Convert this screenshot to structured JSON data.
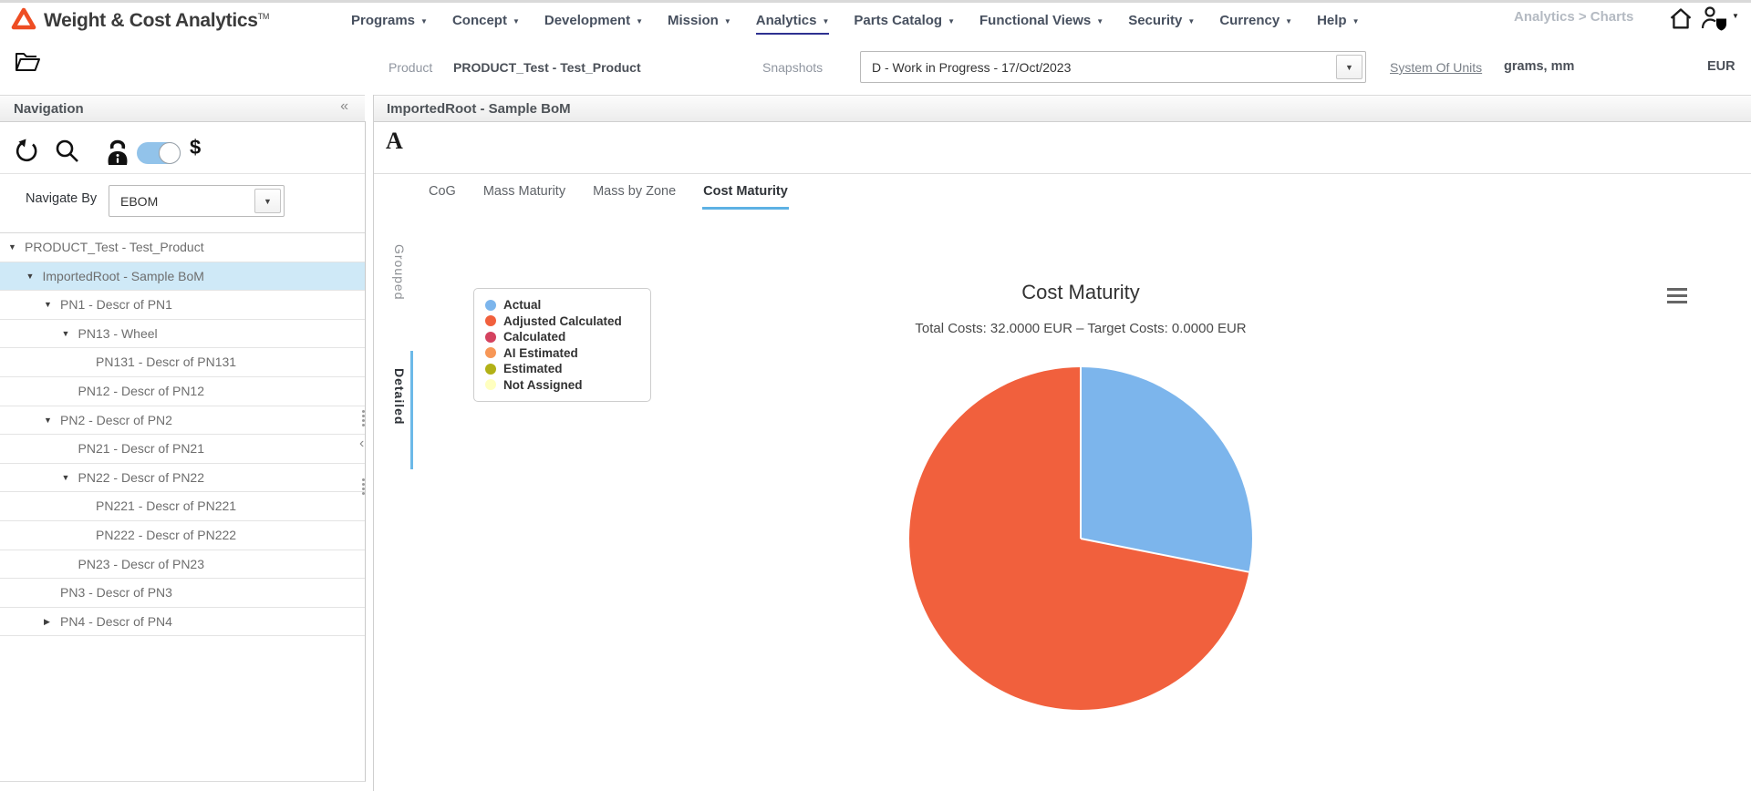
{
  "app": {
    "logo_text": "Weight & Cost Analytics",
    "logo_tm": "TM"
  },
  "top_nav": {
    "items": [
      {
        "label": "Programs"
      },
      {
        "label": "Concept"
      },
      {
        "label": "Development"
      },
      {
        "label": "Mission"
      },
      {
        "label": "Analytics"
      },
      {
        "label": "Parts Catalog"
      },
      {
        "label": "Functional Views"
      },
      {
        "label": "Security"
      },
      {
        "label": "Currency"
      },
      {
        "label": "Help"
      }
    ],
    "active_item": "Analytics",
    "breadcrumb": "Analytics > Charts"
  },
  "context_bar": {
    "product_label": "Product",
    "product_value": "PRODUCT_Test - Test_Product",
    "snapshots_label": "Snapshots",
    "snapshot_value": "D - Work in Progress - 17/Oct/2023",
    "system_of_units_label": "System Of Units",
    "units_value": "grams, mm",
    "currency": "EUR"
  },
  "sidebar": {
    "title": "Navigation",
    "collapse_icon": "«",
    "navigate_by_label": "Navigate By",
    "navigate_by_value": "EBOM",
    "cost_icon_label": "$",
    "toggle_state": "right",
    "tree": [
      {
        "label": "PRODUCT_Test - Test_Product",
        "level": 0,
        "state": "expanded",
        "selected": false
      },
      {
        "label": "ImportedRoot - Sample BoM",
        "level": 1,
        "state": "expanded",
        "selected": true
      },
      {
        "label": "PN1 - Descr of PN1",
        "level": 2,
        "state": "expanded",
        "selected": false
      },
      {
        "label": "PN13 - Wheel",
        "level": 3,
        "state": "expanded",
        "selected": false
      },
      {
        "label": "PN131 - Descr of PN131",
        "level": 4,
        "state": "leaf",
        "selected": false
      },
      {
        "label": "PN12 - Descr of PN12",
        "level": 3,
        "state": "leaf",
        "selected": false
      },
      {
        "label": "PN2 - Descr of PN2",
        "level": 2,
        "state": "expanded",
        "selected": false
      },
      {
        "label": "PN21 - Descr of PN21",
        "level": 3,
        "state": "leaf",
        "selected": false
      },
      {
        "label": "PN22 - Descr of PN22",
        "level": 3,
        "state": "expanded",
        "selected": false
      },
      {
        "label": "PN221 - Descr of PN221",
        "level": 4,
        "state": "leaf",
        "selected": false
      },
      {
        "label": "PN222 - Descr of PN222",
        "level": 4,
        "state": "leaf",
        "selected": false
      },
      {
        "label": "PN23 - Descr of PN23",
        "level": 3,
        "state": "leaf",
        "selected": false
      },
      {
        "label": "PN3 - Descr of PN3",
        "level": 2,
        "state": "leaf",
        "selected": false
      },
      {
        "label": "PN4 - Descr of PN4",
        "level": 2,
        "state": "collapsed",
        "selected": false
      }
    ]
  },
  "main": {
    "header": "ImportedRoot - Sample BoM",
    "font_button_label": "A",
    "tabs": [
      "CoG",
      "Mass Maturity",
      "Mass by Zone",
      "Cost Maturity"
    ],
    "active_tab": "Cost Maturity",
    "side_tabs": [
      "Grouped",
      "Detailed"
    ],
    "active_side_tab": "Detailed"
  },
  "chart_data": {
    "type": "pie",
    "title": "Cost Maturity",
    "subtitle": "Total Costs: 32.0000 EUR – Target Costs: 0.0000 EUR",
    "total_costs": "32.0000 EUR",
    "target_costs": "0.0000 EUR",
    "units": "EUR",
    "legend_position": "left",
    "legend": [
      {
        "label": "Actual",
        "color": "#7cb5ec"
      },
      {
        "label": "Adjusted Calculated",
        "color": "#f1603d"
      },
      {
        "label": "Calculated",
        "color": "#d4425f"
      },
      {
        "label": "AI Estimated",
        "color": "#f79757"
      },
      {
        "label": "Estimated",
        "color": "#b2b117"
      },
      {
        "label": "Not Assigned",
        "color": "#ffffbf"
      }
    ],
    "series": [
      {
        "name": "Actual",
        "value": 9.0,
        "percent": 28.125,
        "color": "#7cb5ec"
      },
      {
        "name": "Adjusted Calculated",
        "value": 23.0,
        "percent": 71.875,
        "color": "#f1603d"
      }
    ]
  },
  "colors": {
    "logo_orange": "#ee4d23",
    "active_menu_underline": "#2e3191",
    "tab_underline_blue": "#5db1e4",
    "selection_blue": "#cfe9f7",
    "toggle_blue": "#92c3ea"
  }
}
